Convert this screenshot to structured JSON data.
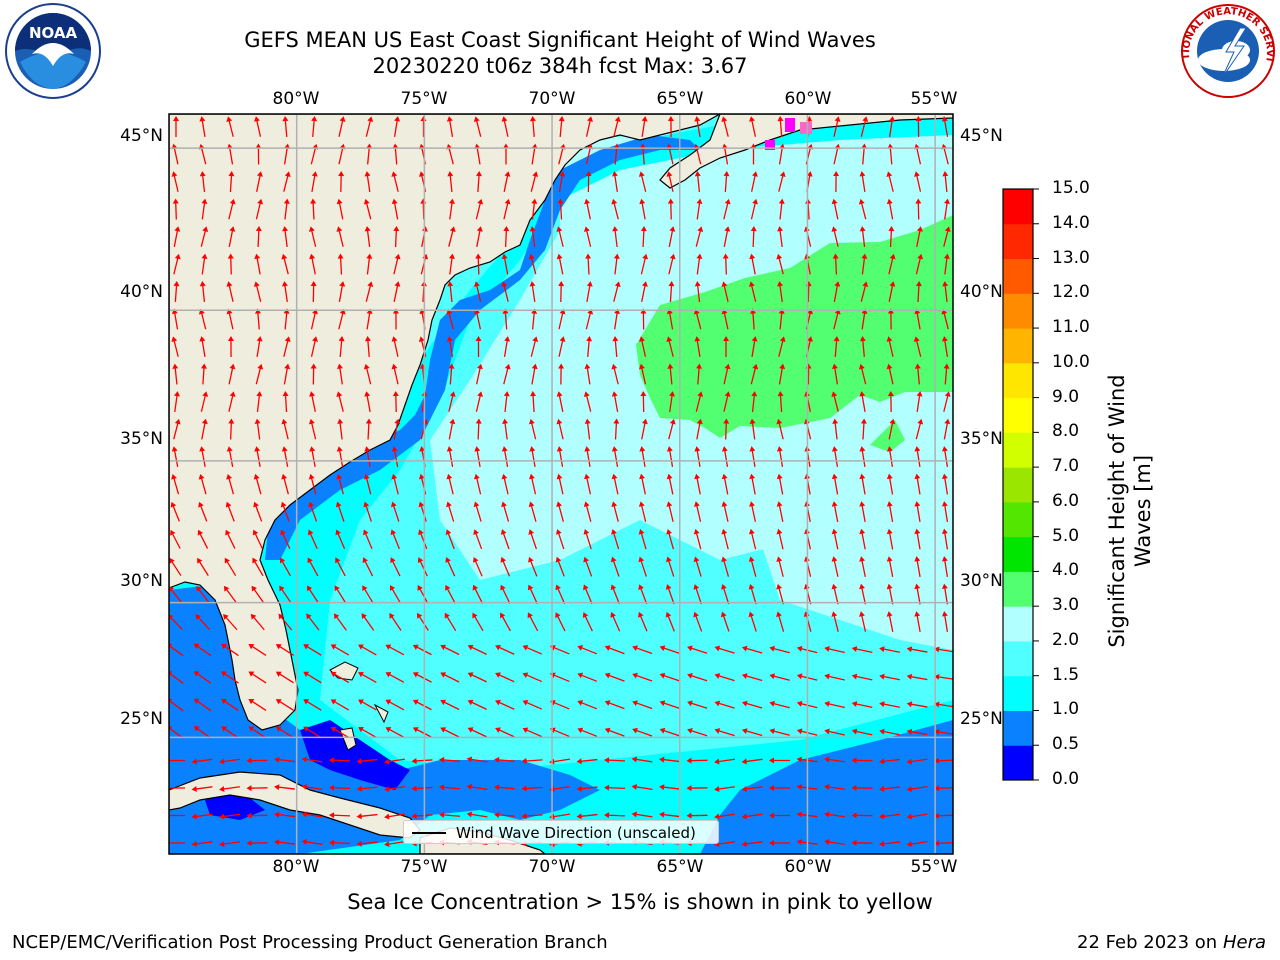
{
  "title": {
    "line1": "GEFS MEAN US East Coast Significant Height of Wind Waves",
    "line2": "20230220 t06z 384h fcst   Max: 3.67"
  },
  "map": {
    "lon_labels": [
      "80°W",
      "75°W",
      "70°W",
      "65°W",
      "60°W",
      "55°W"
    ],
    "lat_labels": [
      "45°N",
      "40°N",
      "35°N",
      "30°N",
      "25°N"
    ],
    "lon_values": [
      -80,
      -75,
      -70,
      -65,
      -60,
      -55
    ],
    "lat_values": [
      45,
      40,
      35,
      30,
      25
    ],
    "extent": {
      "lon_min": -85,
      "lon_max": -54.3,
      "lat_min": 20.5,
      "lat_max": 46
    },
    "land_color": "#efedde",
    "legend_text": "Wind Wave Direction (unscaled)",
    "arrow_color": "#ff0000"
  },
  "colorbar": {
    "title": "Significant Height of Wind Waves [m]",
    "levels": [
      "0.0",
      "0.5",
      "1.0",
      "1.5",
      "2.0",
      "3.0",
      "4.0",
      "5.0",
      "6.0",
      "7.0",
      "8.0",
      "9.0",
      "10.0",
      "11.0",
      "12.0",
      "13.0",
      "14.0",
      "15.0"
    ],
    "colors": [
      "#0000ff",
      "#0a82ff",
      "#00ffff",
      "#50ffff",
      "#b2ffff",
      "#52ff70",
      "#00e600",
      "#52e600",
      "#9ae600",
      "#d2ff00",
      "#ffff00",
      "#ffe600",
      "#ffb400",
      "#ff8c00",
      "#ff5a00",
      "#ff2800",
      "#ff0000"
    ]
  },
  "note": "Sea Ice Concentration > 15% is shown in pink to yellow",
  "footer": {
    "left": "NCEP/EMC/Verification Post Processing Product Generation Branch",
    "right_date": "22 Feb 2023 on",
    "right_host": "Hera"
  },
  "logos": {
    "noaa_text": "NOAA",
    "nws_text": "NATIONAL WEATHER SERVICE"
  }
}
